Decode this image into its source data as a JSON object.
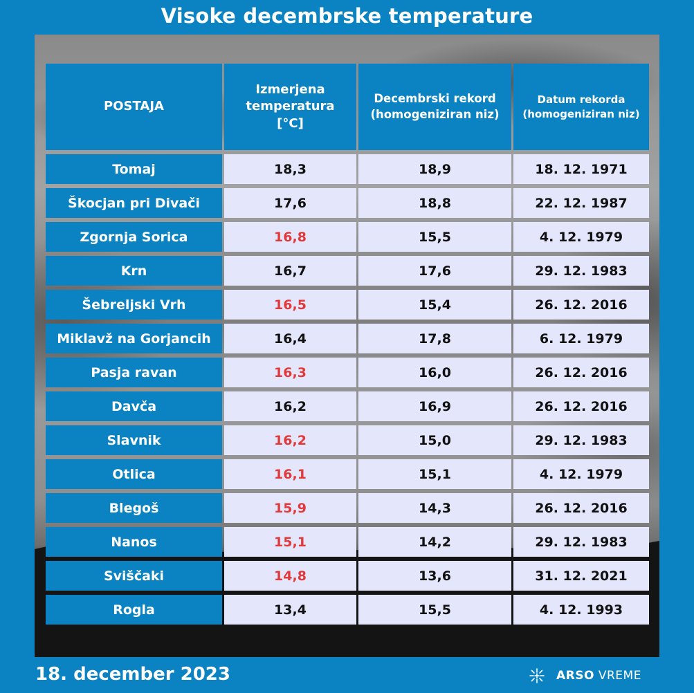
{
  "title": "Visoke decembrske temperature",
  "headers": {
    "station": "POSTAJA",
    "measured": "Izmerjena\ntemperatura\n[°C]",
    "record": "Decembrski rekord\n(homogeniziran niz)",
    "record_date": "Datum rekorda\n(homogeniziran niz)"
  },
  "rows": [
    {
      "station": "Tomaj",
      "measured": "18,3",
      "record": "18,9",
      "date": "18. 12. 1971",
      "new_record": false
    },
    {
      "station": "Škocjan pri Divači",
      "measured": "17,6",
      "record": "18,8",
      "date": "22. 12. 1987",
      "new_record": false
    },
    {
      "station": "Zgornja Sorica",
      "measured": "16,8",
      "record": "15,5",
      "date": "4. 12. 1979",
      "new_record": true
    },
    {
      "station": "Krn",
      "measured": "16,7",
      "record": "17,6",
      "date": "29. 12. 1983",
      "new_record": false
    },
    {
      "station": "Šebreljski Vrh",
      "measured": "16,5",
      "record": "15,4",
      "date": "26. 12. 2016",
      "new_record": true
    },
    {
      "station": "Miklavž na Gorjancih",
      "measured": "16,4",
      "record": "17,8",
      "date": "6. 12. 1979",
      "new_record": false
    },
    {
      "station": "Pasja ravan",
      "measured": "16,3",
      "record": "16,0",
      "date": "26. 12. 2016",
      "new_record": true
    },
    {
      "station": "Davča",
      "measured": "16,2",
      "record": "16,9",
      "date": "26. 12. 2016",
      "new_record": false
    },
    {
      "station": "Slavnik",
      "measured": "16,2",
      "record": "15,0",
      "date": "29. 12. 1983",
      "new_record": true
    },
    {
      "station": "Otlica",
      "measured": "16,1",
      "record": "15,1",
      "date": "4. 12. 1979",
      "new_record": true
    },
    {
      "station": "Blegoš",
      "measured": "15,9",
      "record": "14,3",
      "date": "26. 12. 2016",
      "new_record": true
    },
    {
      "station": "Nanos",
      "measured": "15,1",
      "record": "14,2",
      "date": "29. 12. 1983",
      "new_record": true
    },
    {
      "station": "Sviščaki",
      "measured": "14,8",
      "record": "13,6",
      "date": "31. 12. 2021",
      "new_record": true
    },
    {
      "station": "Rogla",
      "measured": "13,4",
      "record": "15,5",
      "date": "4. 12. 1993",
      "new_record": false
    }
  ],
  "footer": {
    "date": "18. december 2023",
    "brand_bold": "ARSO",
    "brand_light": "VREME",
    "brand_icon": "sun-rays-icon"
  },
  "colors": {
    "brand_blue": "#0b82c2",
    "cell_bg": "#e4e6fb",
    "record_red": "#e23a3a"
  }
}
